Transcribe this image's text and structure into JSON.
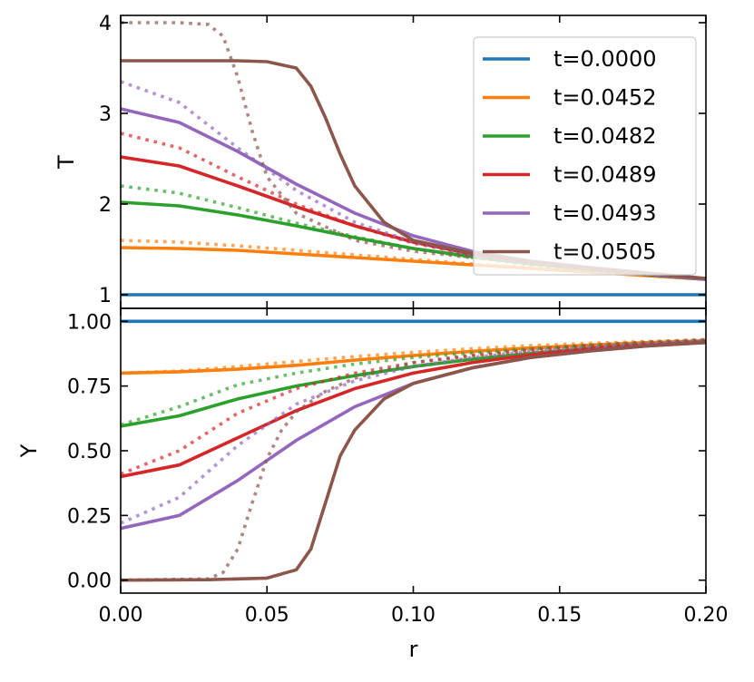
{
  "chart_data": [
    {
      "type": "line",
      "panel": "top",
      "ylabel": "T",
      "xlim": [
        0,
        0.2
      ],
      "ylim": [
        0.85,
        4.08
      ],
      "yticks": [
        1,
        2,
        3,
        4
      ],
      "ytick_labels": [
        "1",
        "2",
        "3",
        "4"
      ],
      "xticks": [
        0,
        0.05,
        0.1,
        0.15,
        0.2
      ],
      "legend": {
        "placement": "top-right",
        "entries": [
          "t=0.0000",
          "t=0.0452",
          "t=0.0482",
          "t=0.0489",
          "t=0.0493",
          "t=0.0505"
        ]
      },
      "series": [
        {
          "name": "t=0.0000",
          "color": "#1f77b4",
          "style": "solid",
          "x": [
            0,
            0.05,
            0.1,
            0.15,
            0.2
          ],
          "y": [
            1.0,
            1.0,
            1.0,
            1.0,
            1.0
          ]
        },
        {
          "name": "t=0.0452",
          "color": "#ff7f0e",
          "style": "solid",
          "x": [
            0,
            0.02,
            0.04,
            0.06,
            0.08,
            0.1,
            0.12,
            0.14,
            0.16,
            0.18,
            0.2
          ],
          "y": [
            1.52,
            1.51,
            1.49,
            1.45,
            1.41,
            1.37,
            1.33,
            1.29,
            1.25,
            1.21,
            1.17
          ]
        },
        {
          "name": "t=0.0452 (dotted)",
          "color": "#ff7f0e",
          "style": "dotted",
          "x": [
            0,
            0.02,
            0.04,
            0.06,
            0.08,
            0.1,
            0.12,
            0.14,
            0.16,
            0.18,
            0.2
          ],
          "y": [
            1.6,
            1.58,
            1.54,
            1.49,
            1.44,
            1.39,
            1.34,
            1.3,
            1.26,
            1.21,
            1.17
          ]
        },
        {
          "name": "t=0.0482",
          "color": "#2ca02c",
          "style": "solid",
          "x": [
            0,
            0.02,
            0.04,
            0.06,
            0.08,
            0.1,
            0.12,
            0.14,
            0.16,
            0.18,
            0.2
          ],
          "y": [
            2.02,
            1.98,
            1.88,
            1.76,
            1.63,
            1.51,
            1.42,
            1.34,
            1.28,
            1.22,
            1.17
          ]
        },
        {
          "name": "t=0.0482 (dotted)",
          "color": "#2ca02c",
          "style": "dotted",
          "x": [
            0,
            0.02,
            0.04,
            0.06,
            0.08,
            0.1,
            0.12,
            0.14,
            0.16,
            0.18,
            0.2
          ],
          "y": [
            2.2,
            2.12,
            1.96,
            1.79,
            1.64,
            1.51,
            1.41,
            1.33,
            1.27,
            1.22,
            1.17
          ]
        },
        {
          "name": "t=0.0489",
          "color": "#d62728",
          "style": "solid",
          "x": [
            0,
            0.02,
            0.04,
            0.06,
            0.08,
            0.1,
            0.12,
            0.14,
            0.16,
            0.18,
            0.2
          ],
          "y": [
            2.52,
            2.42,
            2.2,
            1.97,
            1.76,
            1.58,
            1.45,
            1.36,
            1.29,
            1.23,
            1.17
          ]
        },
        {
          "name": "t=0.0489 (dotted)",
          "color": "#d62728",
          "style": "dotted",
          "x": [
            0,
            0.02,
            0.04,
            0.06,
            0.08,
            0.1,
            0.12,
            0.14,
            0.16,
            0.18,
            0.2
          ],
          "y": [
            2.78,
            2.62,
            2.3,
            2.0,
            1.76,
            1.57,
            1.44,
            1.35,
            1.28,
            1.22,
            1.17
          ]
        },
        {
          "name": "t=0.0493",
          "color": "#9467bd",
          "style": "solid",
          "x": [
            0,
            0.02,
            0.04,
            0.06,
            0.08,
            0.1,
            0.12,
            0.14,
            0.16,
            0.18,
            0.2
          ],
          "y": [
            3.05,
            2.9,
            2.58,
            2.22,
            1.9,
            1.65,
            1.48,
            1.37,
            1.3,
            1.23,
            1.17
          ]
        },
        {
          "name": "t=0.0493 (dotted)",
          "color": "#9467bd",
          "style": "dotted",
          "x": [
            0,
            0.02,
            0.04,
            0.06,
            0.08,
            0.1,
            0.12,
            0.14,
            0.16,
            0.18,
            0.2
          ],
          "y": [
            3.35,
            3.12,
            2.62,
            2.15,
            1.8,
            1.58,
            1.44,
            1.35,
            1.28,
            1.22,
            1.17
          ]
        },
        {
          "name": "t=0.0505",
          "color": "#8c564b",
          "style": "solid",
          "x": [
            0,
            0.02,
            0.04,
            0.05,
            0.06,
            0.065,
            0.07,
            0.075,
            0.08,
            0.09,
            0.1,
            0.12,
            0.14,
            0.16,
            0.18,
            0.2
          ],
          "y": [
            3.58,
            3.58,
            3.58,
            3.57,
            3.5,
            3.3,
            2.95,
            2.55,
            2.2,
            1.8,
            1.6,
            1.46,
            1.37,
            1.3,
            1.24,
            1.18
          ]
        },
        {
          "name": "t=0.0505 (dotted)",
          "color": "#8c564b",
          "style": "dotted",
          "x": [
            0,
            0.02,
            0.03,
            0.035,
            0.04,
            0.045,
            0.05,
            0.06,
            0.08,
            0.1,
            0.12,
            0.14,
            0.16,
            0.18,
            0.2
          ],
          "y": [
            4.0,
            4.0,
            3.98,
            3.85,
            3.4,
            2.8,
            2.3,
            1.9,
            1.6,
            1.48,
            1.41,
            1.35,
            1.29,
            1.23,
            1.18
          ]
        }
      ]
    },
    {
      "type": "line",
      "panel": "bottom",
      "ylabel": "Y",
      "xlabel": "r",
      "xlim": [
        0,
        0.2
      ],
      "ylim": [
        -0.05,
        1.05
      ],
      "yticks": [
        0,
        0.25,
        0.5,
        0.75,
        1.0
      ],
      "ytick_labels": [
        "0.00",
        "0.25",
        "0.50",
        "0.75",
        "1.00"
      ],
      "xticks": [
        0,
        0.05,
        0.1,
        0.15,
        0.2
      ],
      "xtick_labels": [
        "0.00",
        "0.05",
        "0.10",
        "0.15",
        "0.20"
      ],
      "series": [
        {
          "name": "t=0.0000",
          "color": "#1f77b4",
          "style": "solid",
          "x": [
            0,
            0.05,
            0.1,
            0.15,
            0.2
          ],
          "y": [
            1.0,
            1.0,
            1.0,
            1.0,
            1.0
          ]
        },
        {
          "name": "t=0.0452",
          "color": "#ff7f0e",
          "style": "solid",
          "x": [
            0,
            0.02,
            0.04,
            0.06,
            0.08,
            0.1,
            0.12,
            0.14,
            0.16,
            0.18,
            0.2
          ],
          "y": [
            0.8,
            0.805,
            0.815,
            0.83,
            0.85,
            0.868,
            0.884,
            0.897,
            0.908,
            0.918,
            0.925
          ]
        },
        {
          "name": "t=0.0452 (dotted)",
          "color": "#ff7f0e",
          "style": "dotted",
          "x": [
            0,
            0.02,
            0.04,
            0.06,
            0.08,
            0.1,
            0.12,
            0.14,
            0.16,
            0.18,
            0.2
          ],
          "y": [
            0.8,
            0.808,
            0.825,
            0.845,
            0.864,
            0.88,
            0.894,
            0.906,
            0.915,
            0.922,
            0.928
          ]
        },
        {
          "name": "t=0.0482",
          "color": "#2ca02c",
          "style": "solid",
          "x": [
            0,
            0.02,
            0.04,
            0.06,
            0.08,
            0.1,
            0.12,
            0.14,
            0.16,
            0.18,
            0.2
          ],
          "y": [
            0.595,
            0.635,
            0.7,
            0.75,
            0.79,
            0.825,
            0.853,
            0.876,
            0.895,
            0.91,
            0.922
          ]
        },
        {
          "name": "t=0.0482 (dotted)",
          "color": "#2ca02c",
          "style": "dotted",
          "x": [
            0,
            0.02,
            0.04,
            0.06,
            0.08,
            0.1,
            0.12,
            0.14,
            0.16,
            0.18,
            0.2
          ],
          "y": [
            0.6,
            0.67,
            0.755,
            0.8,
            0.835,
            0.86,
            0.878,
            0.893,
            0.906,
            0.916,
            0.925
          ]
        },
        {
          "name": "t=0.0489",
          "color": "#d62728",
          "style": "solid",
          "x": [
            0,
            0.02,
            0.04,
            0.06,
            0.08,
            0.1,
            0.12,
            0.14,
            0.16,
            0.18,
            0.2
          ],
          "y": [
            0.4,
            0.445,
            0.55,
            0.655,
            0.74,
            0.8,
            0.84,
            0.87,
            0.892,
            0.908,
            0.92
          ]
        },
        {
          "name": "t=0.0489 (dotted)",
          "color": "#d62728",
          "style": "dotted",
          "x": [
            0,
            0.02,
            0.04,
            0.06,
            0.08,
            0.1,
            0.12,
            0.14,
            0.16,
            0.18,
            0.2
          ],
          "y": [
            0.41,
            0.5,
            0.645,
            0.74,
            0.8,
            0.84,
            0.866,
            0.886,
            0.902,
            0.915,
            0.925
          ]
        },
        {
          "name": "t=0.0493",
          "color": "#9467bd",
          "style": "solid",
          "x": [
            0,
            0.02,
            0.04,
            0.06,
            0.08,
            0.1,
            0.12,
            0.14,
            0.16,
            0.18,
            0.2
          ],
          "y": [
            0.2,
            0.25,
            0.385,
            0.54,
            0.67,
            0.76,
            0.82,
            0.86,
            0.885,
            0.905,
            0.918
          ]
        },
        {
          "name": "t=0.0493 (dotted)",
          "color": "#9467bd",
          "style": "dotted",
          "x": [
            0,
            0.02,
            0.04,
            0.06,
            0.08,
            0.1,
            0.12,
            0.14,
            0.16,
            0.18,
            0.2
          ],
          "y": [
            0.22,
            0.32,
            0.52,
            0.68,
            0.77,
            0.825,
            0.86,
            0.884,
            0.9,
            0.914,
            0.925
          ]
        },
        {
          "name": "t=0.0505",
          "color": "#8c564b",
          "style": "solid",
          "x": [
            0,
            0.03,
            0.05,
            0.06,
            0.065,
            0.07,
            0.075,
            0.08,
            0.09,
            0.1,
            0.12,
            0.14,
            0.16,
            0.18,
            0.2
          ],
          "y": [
            0.0,
            0.002,
            0.008,
            0.04,
            0.12,
            0.3,
            0.48,
            0.58,
            0.7,
            0.76,
            0.82,
            0.86,
            0.885,
            0.905,
            0.918
          ]
        },
        {
          "name": "t=0.0505 (dotted)",
          "color": "#8c564b",
          "style": "dotted",
          "x": [
            0,
            0.03,
            0.035,
            0.04,
            0.045,
            0.05,
            0.055,
            0.06,
            0.07,
            0.08,
            0.1,
            0.12,
            0.14,
            0.16,
            0.18,
            0.2
          ],
          "y": [
            0.0,
            0.005,
            0.03,
            0.12,
            0.3,
            0.47,
            0.58,
            0.65,
            0.73,
            0.78,
            0.84,
            0.87,
            0.892,
            0.908,
            0.92,
            0.93
          ]
        }
      ]
    }
  ]
}
